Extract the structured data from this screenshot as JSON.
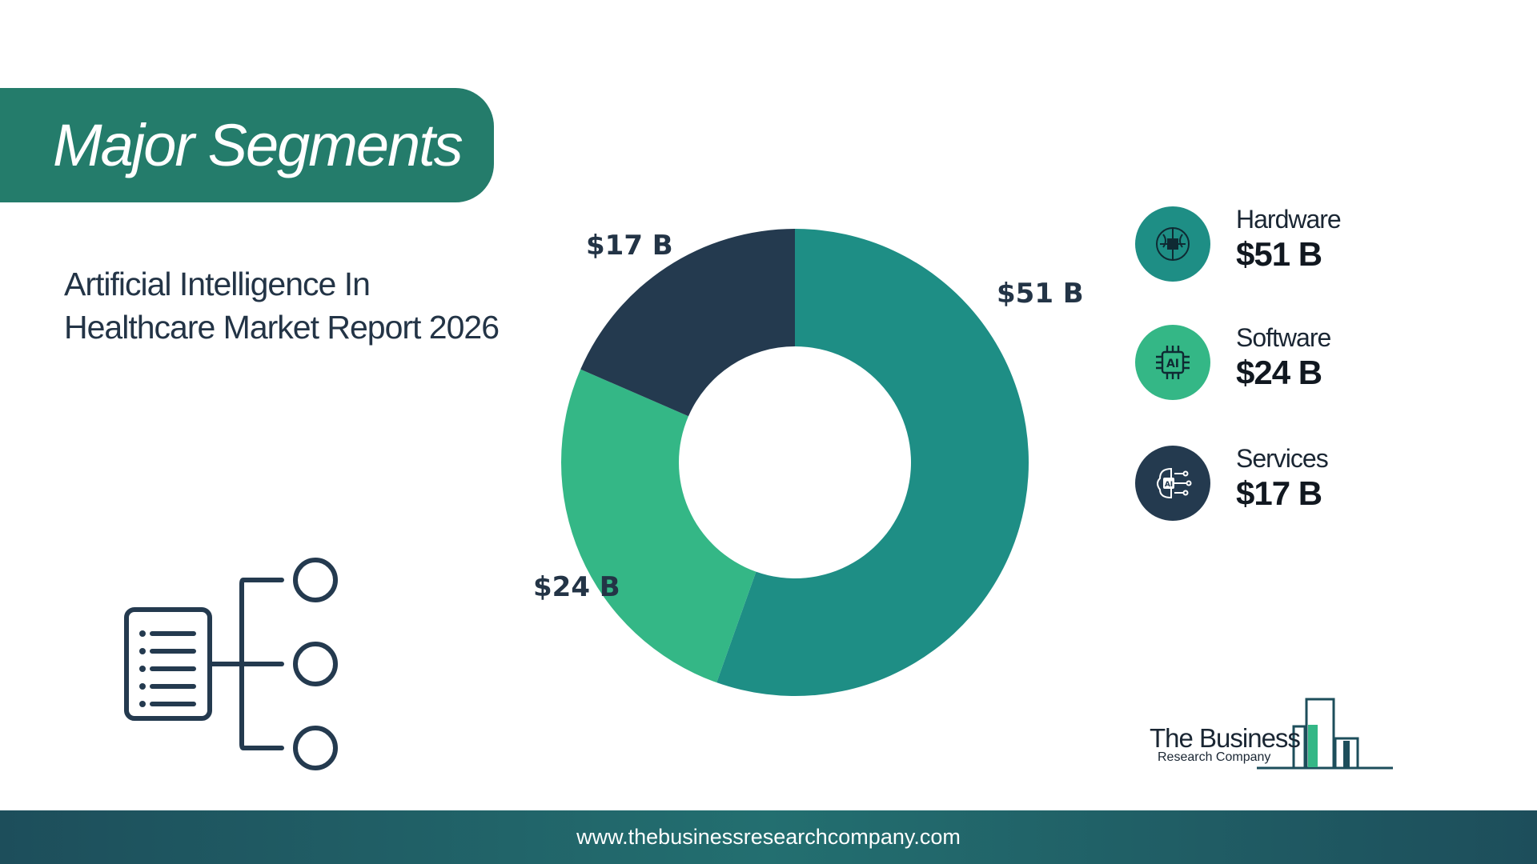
{
  "header": {
    "title": "Major Segments"
  },
  "report": {
    "subtitle": "Artificial Intelligence In Healthcare Market Report 2026"
  },
  "chart_data": {
    "type": "pie",
    "categories": [
      "Hardware",
      "Software",
      "Services"
    ],
    "values": [
      51,
      24,
      17
    ],
    "unit": "B",
    "labels": [
      "$51 B",
      "$24 B",
      "$17 B"
    ],
    "colors": [
      "#1e8e85",
      "#34b786",
      "#243a4f"
    ],
    "title": "",
    "legend_placement": "right"
  },
  "legend": [
    {
      "name": "Hardware",
      "value": "$51 B",
      "icon": "chip-brain-icon",
      "color": "#1e8e85"
    },
    {
      "name": "Software",
      "value": "$24 B",
      "icon": "ai-chip-icon",
      "color": "#34b786"
    },
    {
      "name": "Services",
      "value": "$17 B",
      "icon": "ai-brain-icon",
      "color": "#243a4f"
    }
  ],
  "decoration": {
    "icon": "segments-tree-icon"
  },
  "logo": {
    "line1": "The Business",
    "line2": "Research Company"
  },
  "footer": {
    "url": "www.thebusinessresearchcompany.com"
  }
}
